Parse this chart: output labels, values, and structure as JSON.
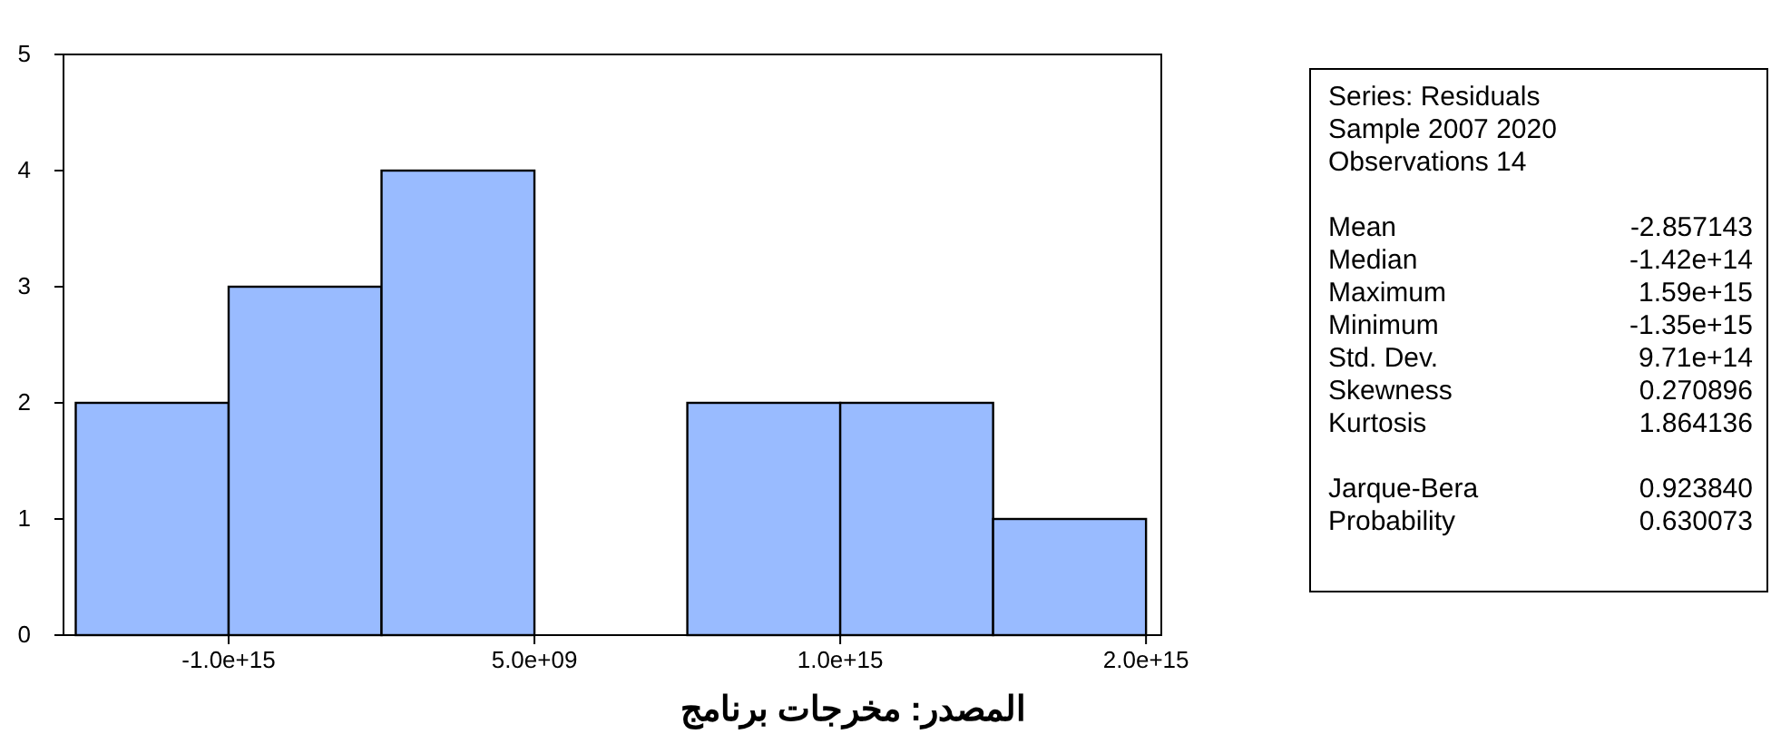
{
  "chart_data": {
    "type": "histogram",
    "bins": [
      -1500000000000000.0,
      -1000000000000000.0,
      -500000000000000.0,
      0,
      500000000000000.0,
      1000000000000000.0,
      1500000000000000.0,
      2000000000000000.0
    ],
    "values": [
      2,
      3,
      4,
      0,
      2,
      2,
      1
    ],
    "color": "#99bbff",
    "xlim": [
      -1540000000000000.0,
      2050000000000000.0
    ],
    "xticks": [
      {
        "value": -1000000000000000.0,
        "label": "-1.0e+15"
      },
      {
        "value": 5000000000.0,
        "label": "5.0e+09"
      },
      {
        "value": 1000000000000000.0,
        "label": "1.0e+15"
      },
      {
        "value": 2000000000000000.0,
        "label": "2.0e+15"
      }
    ],
    "ylim": [
      0,
      5
    ],
    "yticks": [
      0,
      1,
      2,
      3,
      4,
      5
    ],
    "grid": false,
    "annotations": [
      "Series: Residuals",
      "Sample 2007 2020",
      "Observations 14",
      "Mean -2.857143",
      "Median -1.42e+14",
      "Maximum 1.59e+15",
      "Minimum -1.35e+15",
      "Std. Dev. 9.71e+14",
      "Skewness 0.270896",
      "Kurtosis 1.864136",
      "Jarque-Bera 0.923840",
      "Probability 0.630073",
      "المصدر: مخرجات برنامج"
    ]
  }
}
